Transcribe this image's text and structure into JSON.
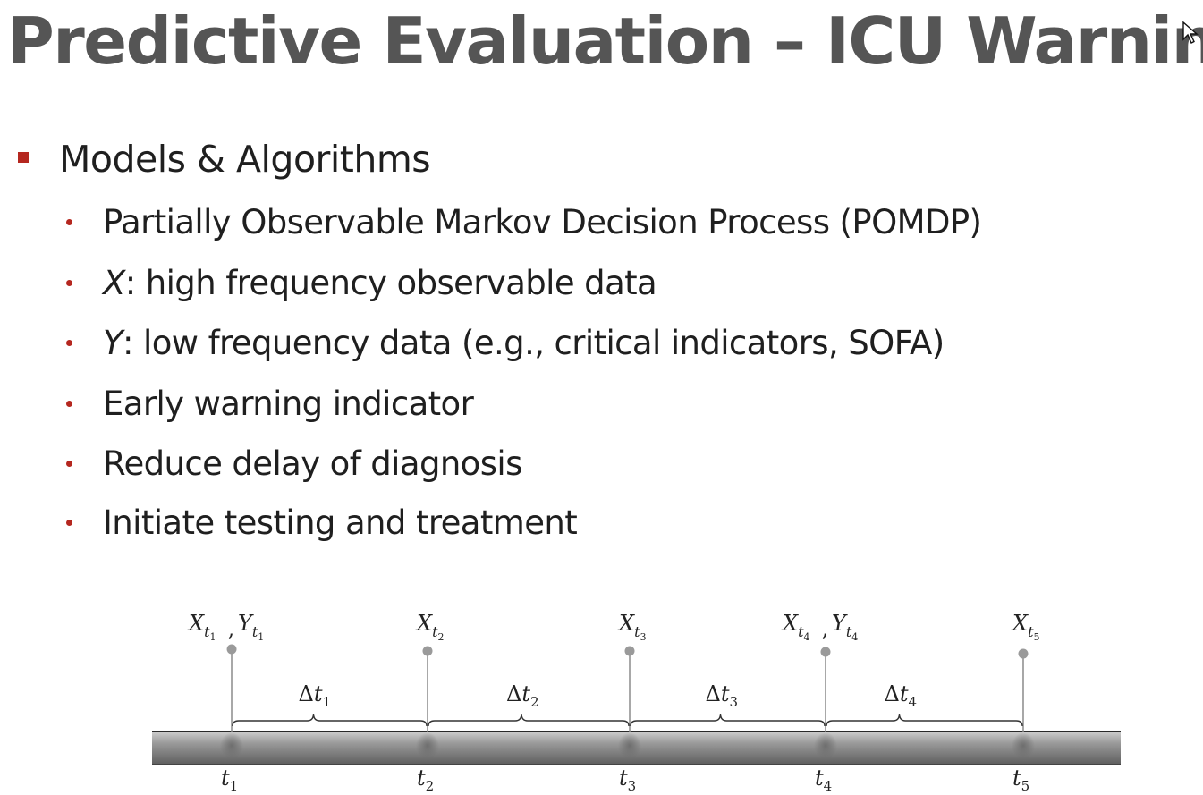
{
  "slide": {
    "title": "Predictive Evaluation – ICU Warning",
    "main_bullet": "Models & Algorithms",
    "bullets": [
      {
        "prefix": "",
        "text": "Partially Observable Markov Decision Process (POMDP)"
      },
      {
        "prefix": "X",
        "text": ": high frequency observable data"
      },
      {
        "prefix": "Y",
        "text": ": low frequency data (e.g., critical indicators, SOFA)"
      },
      {
        "prefix": "",
        "text": "Early warning indicator"
      },
      {
        "prefix": "",
        "text": "Reduce delay of diagnosis"
      },
      {
        "prefix": "",
        "text": "Initiate testing and treatment"
      }
    ]
  },
  "timeline": {
    "time_points": [
      "1",
      "2",
      "3",
      "4",
      "5"
    ],
    "time_symbol": "t",
    "intervals": [
      "Δt1",
      "Δt2",
      "Δt3",
      "Δt4"
    ],
    "observations": [
      {
        "label": "X_t1, Y_t1",
        "has_y": true
      },
      {
        "label": "X_t2",
        "has_y": false
      },
      {
        "label": "X_t3",
        "has_y": false
      },
      {
        "label": "X_t4, Y_t4",
        "has_y": true
      },
      {
        "label": "X_t5",
        "has_y": false
      }
    ]
  }
}
